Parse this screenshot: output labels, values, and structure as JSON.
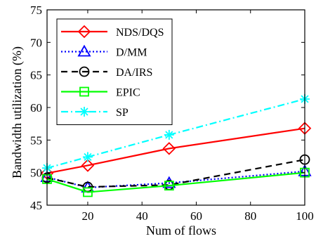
{
  "chart_data": {
    "type": "line",
    "xlabel": "Num of flows",
    "ylabel": "Bandwidth utilization (%)",
    "xlim": [
      5,
      100
    ],
    "ylim": [
      45,
      75
    ],
    "xticks": [
      20,
      40,
      60,
      80,
      100
    ],
    "yticks": [
      45,
      50,
      55,
      60,
      65,
      70,
      75
    ],
    "grid": false,
    "legend_position": "top-left",
    "x": [
      5,
      20,
      50,
      100
    ],
    "series": [
      {
        "name": "NDS/DQS",
        "values": [
          49.9,
          51.1,
          53.7,
          56.8
        ],
        "color": "#ff0000",
        "dash": "solid",
        "marker": "diamond"
      },
      {
        "name": "D/MM",
        "values": [
          49.3,
          47.7,
          48.4,
          50.2
        ],
        "color": "#0000ff",
        "dash": "dotted",
        "marker": "triangle"
      },
      {
        "name": "DA/IRS",
        "values": [
          49.2,
          47.8,
          48.1,
          52.0
        ],
        "color": "#000000",
        "dash": "dashed",
        "marker": "circle"
      },
      {
        "name": "EPIC",
        "values": [
          49.0,
          47.0,
          48.0,
          50.0
        ],
        "color": "#00ff00",
        "dash": "solid",
        "marker": "square"
      },
      {
        "name": "SP",
        "values": [
          50.7,
          52.4,
          55.8,
          61.3
        ],
        "color": "#00ffff",
        "dash": "dashdot",
        "marker": "asterisk"
      }
    ]
  }
}
